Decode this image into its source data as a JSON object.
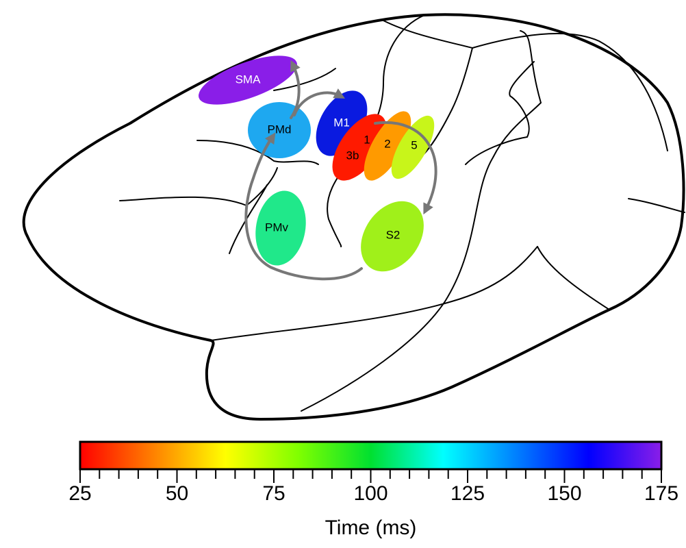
{
  "regions": [
    {
      "label": "SMA",
      "color": "#8a1ee8",
      "text_color": "#ffffff"
    },
    {
      "label": "PMd",
      "color": "#1ea8f0",
      "text_color": "#000000"
    },
    {
      "label": "M1",
      "color": "#0a1ae0",
      "text_color": "#ffffff"
    },
    {
      "label": "3b",
      "color": "#ff1a00",
      "text_color": "#000000"
    },
    {
      "label": "1",
      "color": "#ff1a00",
      "text_color": "#000000"
    },
    {
      "label": "2",
      "color": "#ff9a00",
      "text_color": "#000000"
    },
    {
      "label": "5",
      "color": "#c8f51a",
      "text_color": "#000000"
    },
    {
      "label": "S2",
      "color": "#a0f01a",
      "text_color": "#000000"
    },
    {
      "label": "PMv",
      "color": "#20e88a",
      "text_color": "#000000"
    }
  ],
  "colorbar": {
    "title": "Time (ms)",
    "lim": [
      25,
      175
    ],
    "ticks": [
      25,
      50,
      75,
      100,
      125,
      150,
      175
    ],
    "minor_ticks": [
      30,
      35,
      40,
      45,
      55,
      60,
      65,
      70,
      80,
      85,
      90,
      95,
      105,
      110,
      115,
      120,
      130,
      135,
      140,
      145,
      155,
      160,
      165,
      170
    ],
    "colors": [
      "#ff0000",
      "#ff8000",
      "#ffff00",
      "#80ff00",
      "#00e030",
      "#00ffff",
      "#0080ff",
      "#0000ff",
      "#8a1ee8"
    ]
  }
}
